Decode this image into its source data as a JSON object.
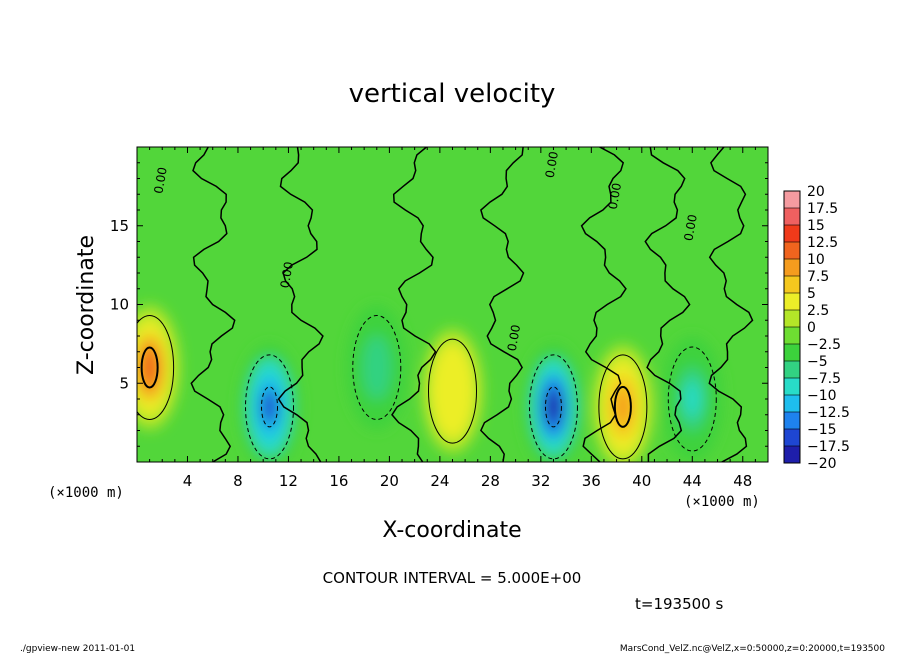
{
  "chart_data": {
    "type": "heatmap",
    "title": "vertical velocity",
    "xlabel": "X-coordinate",
    "ylabel": "Z-coordinate",
    "x_unit_label": "(×1000 m)",
    "xlim": [
      0,
      50
    ],
    "ylim": [
      0,
      20
    ],
    "x_ticks": [
      4,
      8,
      12,
      16,
      20,
      24,
      28,
      32,
      36,
      40,
      44,
      48
    ],
    "y_ticks": [
      5,
      10,
      15
    ],
    "colorbar": {
      "labels": [
        "20",
        "17.5",
        "15",
        "12.5",
        "10",
        "7.5",
        "5",
        "2.5",
        "0",
        "−2.5",
        "−5",
        "−7.5",
        "−10",
        "−12.5",
        "−15",
        "−17.5",
        "−20"
      ],
      "levels": [
        20,
        17.5,
        15,
        12.5,
        10,
        7.5,
        5,
        2.5,
        0,
        -2.5,
        -5,
        -7.5,
        -10,
        -12.5,
        -15,
        -17.5,
        -20
      ],
      "colors": [
        "#f59ba0",
        "#ef6060",
        "#f03a1a",
        "#f0641e",
        "#f59c1e",
        "#f5c81e",
        "#ecee28",
        "#b4e628",
        "#6ede32",
        "#3cd23c",
        "#32d282",
        "#28dcc8",
        "#1ebeee",
        "#1e82ee",
        "#1e46d2",
        "#1e1eaa",
        "#6e1eaa"
      ]
    },
    "contour_interval_text": "CONTOUR INTERVAL = 5.000E+00",
    "contour_labels": [
      "0.00",
      "0.00",
      "0.00",
      "0.00",
      "0.00",
      "0.00"
    ],
    "features": [
      {
        "x": 1,
        "z": 6,
        "value": 12
      },
      {
        "x": 10.5,
        "z": 3.5,
        "value": -15
      },
      {
        "x": 19,
        "z": 6,
        "value": -6
      },
      {
        "x": 25,
        "z": 4.5,
        "value": 6
      },
      {
        "x": 33,
        "z": 3.5,
        "value": -17
      },
      {
        "x": 38.5,
        "z": 3.5,
        "value": 11
      },
      {
        "x": 44,
        "z": 4,
        "value": -7
      }
    ]
  },
  "time_label": "t=193500 s",
  "footer": {
    "left": "./gpview-new  2011-01-01",
    "right": "MarsCond_VelZ.nc@VelZ,x=0:50000,z=0:20000,t=193500"
  }
}
